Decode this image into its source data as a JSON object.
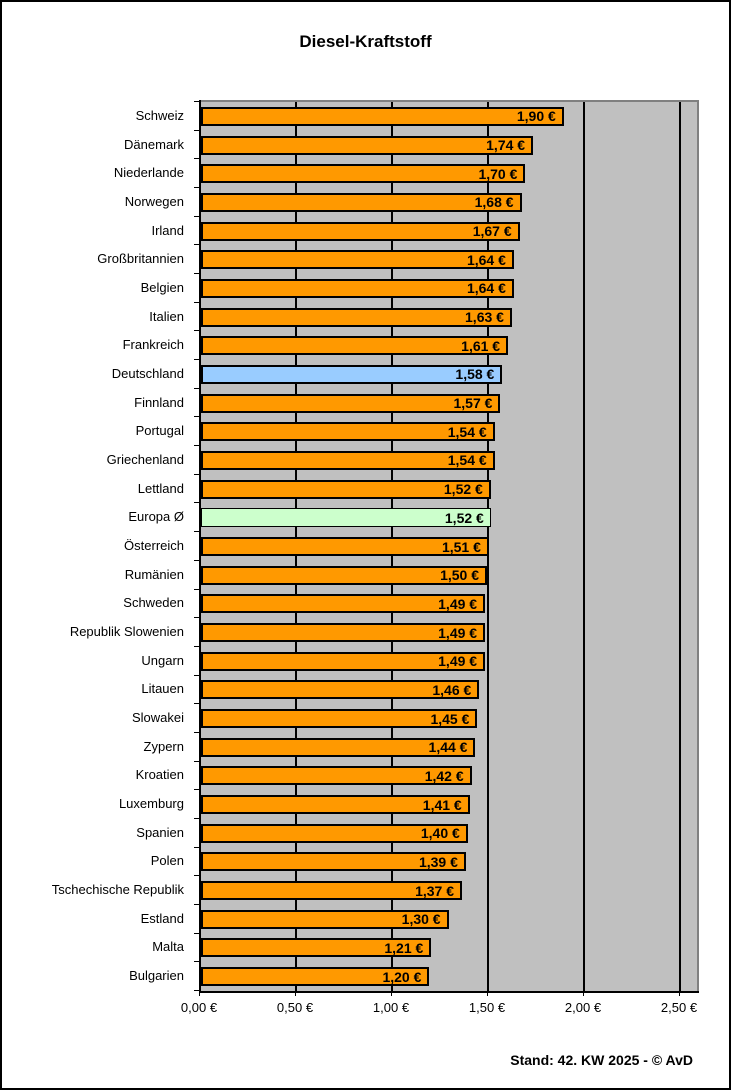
{
  "footer": {
    "text": "Stand: 42. KW 2025 - © AvD"
  },
  "colors": {
    "background": "#FFFFFF",
    "frame": "#000000",
    "plot_bg": "#C0C0C0",
    "plot_border": "#808080",
    "gridline": "#000000",
    "bar_border": "#000000",
    "bars": {
      "default": "#FF9900",
      "germany": "#99CCFF",
      "europe": "#CCFFCC"
    }
  },
  "chart_data": {
    "type": "bar",
    "orientation": "horizontal",
    "title": "Diesel-Kraftstoff",
    "xlabel": "",
    "ylabel": "",
    "xlim": [
      0,
      2.6
    ],
    "x_tick_step": 0.5,
    "grid": "vertical-black-every-0.50",
    "legend": "none",
    "currency_unit": "€",
    "x_ticks": [
      {
        "value": 0.0,
        "label": "0,00 €"
      },
      {
        "value": 0.5,
        "label": "0,50 €"
      },
      {
        "value": 1.0,
        "label": "1,00 €"
      },
      {
        "value": 1.5,
        "label": "1,50 €"
      },
      {
        "value": 2.0,
        "label": "2,00 €"
      },
      {
        "value": 2.5,
        "label": "2,50 €"
      }
    ],
    "rows": [
      {
        "label": "Schweiz",
        "value": 1.9,
        "display": "1,90 €",
        "color": "default"
      },
      {
        "label": "Dänemark",
        "value": 1.74,
        "display": "1,74 €",
        "color": "default"
      },
      {
        "label": "Niederlande",
        "value": 1.7,
        "display": "1,70 €",
        "color": "default"
      },
      {
        "label": "Norwegen",
        "value": 1.68,
        "display": "1,68 €",
        "color": "default"
      },
      {
        "label": "Irland",
        "value": 1.67,
        "display": "1,67 €",
        "color": "default"
      },
      {
        "label": "Großbritannien",
        "value": 1.64,
        "display": "1,64 €",
        "color": "default"
      },
      {
        "label": "Belgien",
        "value": 1.64,
        "display": "1,64 €",
        "color": "default"
      },
      {
        "label": "Italien",
        "value": 1.63,
        "display": "1,63 €",
        "color": "default"
      },
      {
        "label": "Frankreich",
        "value": 1.61,
        "display": "1,61 €",
        "color": "default"
      },
      {
        "label": "Deutschland",
        "value": 1.58,
        "display": "1,58 €",
        "color": "germany"
      },
      {
        "label": "Finnland",
        "value": 1.57,
        "display": "1,57 €",
        "color": "default"
      },
      {
        "label": "Portugal",
        "value": 1.54,
        "display": "1,54 €",
        "color": "default"
      },
      {
        "label": "Griechenland",
        "value": 1.54,
        "display": "1,54 €",
        "color": "default"
      },
      {
        "label": "Lettland",
        "value": 1.52,
        "display": "1,52 €",
        "color": "default"
      },
      {
        "label": "Europa Ø",
        "value": 1.52,
        "display": "1,52 €",
        "color": "europe"
      },
      {
        "label": "Österreich",
        "value": 1.51,
        "display": "1,51 €",
        "color": "default"
      },
      {
        "label": "Rumänien",
        "value": 1.5,
        "display": "1,50 €",
        "color": "default"
      },
      {
        "label": "Schweden",
        "value": 1.49,
        "display": "1,49 €",
        "color": "default"
      },
      {
        "label": "Republik Slowenien",
        "value": 1.49,
        "display": "1,49 €",
        "color": "default"
      },
      {
        "label": "Ungarn",
        "value": 1.49,
        "display": "1,49 €",
        "color": "default"
      },
      {
        "label": "Litauen",
        "value": 1.46,
        "display": "1,46 €",
        "color": "default"
      },
      {
        "label": "Slowakei",
        "value": 1.45,
        "display": "1,45 €",
        "color": "default"
      },
      {
        "label": "Zypern",
        "value": 1.44,
        "display": "1,44 €",
        "color": "default"
      },
      {
        "label": "Kroatien",
        "value": 1.42,
        "display": "1,42 €",
        "color": "default"
      },
      {
        "label": "Luxemburg",
        "value": 1.41,
        "display": "1,41 €",
        "color": "default"
      },
      {
        "label": "Spanien",
        "value": 1.4,
        "display": "1,40 €",
        "color": "default"
      },
      {
        "label": "Polen",
        "value": 1.39,
        "display": "1,39 €",
        "color": "default"
      },
      {
        "label": "Tschechische Republik",
        "value": 1.37,
        "display": "1,37 €",
        "color": "default"
      },
      {
        "label": "Estland",
        "value": 1.3,
        "display": "1,30 €",
        "color": "default"
      },
      {
        "label": "Malta",
        "value": 1.21,
        "display": "1,21 €",
        "color": "default"
      },
      {
        "label": "Bulgarien",
        "value": 1.2,
        "display": "1,20 €",
        "color": "default"
      }
    ]
  }
}
